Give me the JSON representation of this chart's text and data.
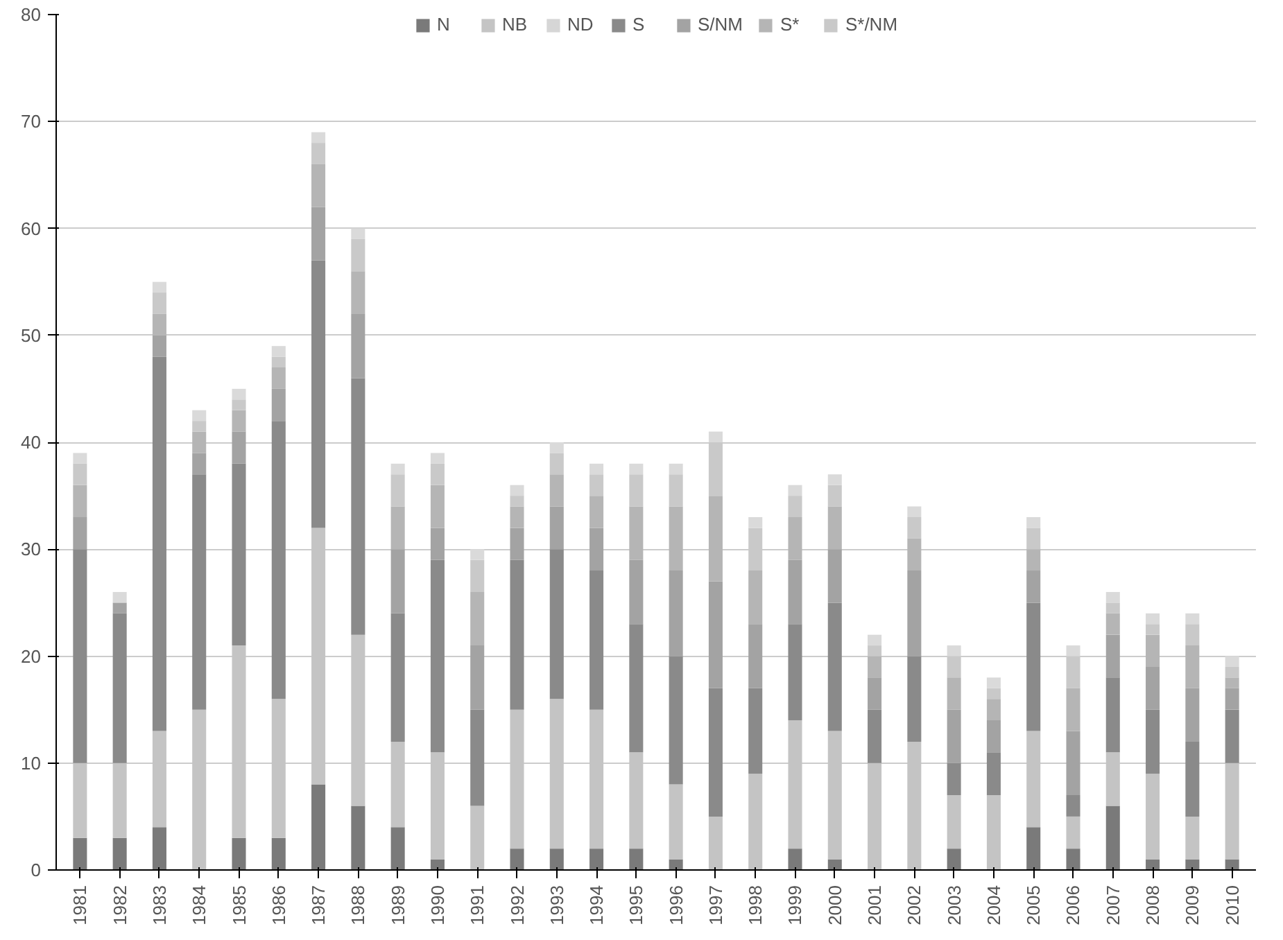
{
  "chart_data": {
    "type": "bar",
    "stacked": true,
    "categories": [
      "1981",
      "1982",
      "1983",
      "1984",
      "1985",
      "1986",
      "1987",
      "1988",
      "1989",
      "1990",
      "1991",
      "1992",
      "1993",
      "1994",
      "1995",
      "1996",
      "1997",
      "1998",
      "1999",
      "2000",
      "2001",
      "2002",
      "2003",
      "2004",
      "2005",
      "2006",
      "2007",
      "2008",
      "2009",
      "2010"
    ],
    "series": [
      {
        "name": "N",
        "color": "#7a7a7a",
        "values": [
          3,
          3,
          4,
          0,
          3,
          3,
          8,
          6,
          4,
          1,
          0,
          2,
          2,
          2,
          2,
          1,
          0,
          0,
          2,
          1,
          0,
          0,
          2,
          0,
          4,
          2,
          6,
          1,
          1,
          1
        ]
      },
      {
        "name": "NB",
        "color": "#c4c4c4",
        "values": [
          7,
          7,
          9,
          15,
          18,
          13,
          24,
          16,
          8,
          10,
          6,
          13,
          14,
          13,
          9,
          7,
          5,
          9,
          12,
          12,
          10,
          12,
          5,
          7,
          9,
          3,
          5,
          8,
          4,
          9
        ]
      },
      {
        "name": "ND",
        "color": "#d6d6d6",
        "values": [
          0,
          0,
          0,
          0,
          0,
          0,
          0,
          0,
          0,
          0,
          0,
          0,
          0,
          0,
          0,
          0,
          0,
          0,
          0,
          0,
          0,
          0,
          0,
          0,
          0,
          0,
          0,
          0,
          0,
          0
        ]
      },
      {
        "name": "S",
        "color": "#8a8a8a",
        "values": [
          20,
          14,
          35,
          22,
          17,
          26,
          25,
          24,
          12,
          18,
          9,
          14,
          14,
          13,
          12,
          12,
          12,
          8,
          9,
          12,
          5,
          8,
          3,
          4,
          12,
          2,
          7,
          6,
          7,
          5
        ]
      },
      {
        "name": "S/NM",
        "color": "#a3a3a3",
        "values": [
          3,
          1,
          2,
          2,
          3,
          3,
          5,
          6,
          6,
          3,
          6,
          3,
          4,
          4,
          6,
          8,
          10,
          6,
          6,
          5,
          3,
          8,
          5,
          3,
          3,
          6,
          4,
          4,
          5,
          2
        ]
      },
      {
        "name": "S*",
        "color": "#b5b5b5",
        "values": [
          3,
          0,
          2,
          2,
          2,
          2,
          4,
          4,
          4,
          4,
          5,
          2,
          3,
          3,
          5,
          6,
          8,
          5,
          4,
          4,
          2,
          3,
          3,
          2,
          2,
          4,
          2,
          3,
          4,
          1
        ]
      },
      {
        "name": "S*/NM",
        "color": "#c9c9c9",
        "values": [
          2,
          0,
          2,
          1,
          1,
          1,
          2,
          3,
          3,
          2,
          3,
          1,
          2,
          2,
          3,
          3,
          5,
          4,
          2,
          2,
          1,
          2,
          2,
          1,
          2,
          3,
          1,
          1,
          2,
          1
        ]
      },
      {
        "color": "#dadada",
        "values": [
          1,
          1,
          1,
          1,
          1,
          1,
          1,
          1,
          1,
          1,
          1,
          1,
          1,
          1,
          1,
          1,
          1,
          1,
          1,
          1,
          1,
          1,
          1,
          1,
          1,
          1,
          1,
          1,
          1,
          1
        ]
      }
    ],
    "ylim": [
      0,
      80
    ],
    "yticks": [
      0,
      10,
      20,
      30,
      40,
      50,
      60,
      70,
      80
    ],
    "grid": "y",
    "legend": "top"
  }
}
